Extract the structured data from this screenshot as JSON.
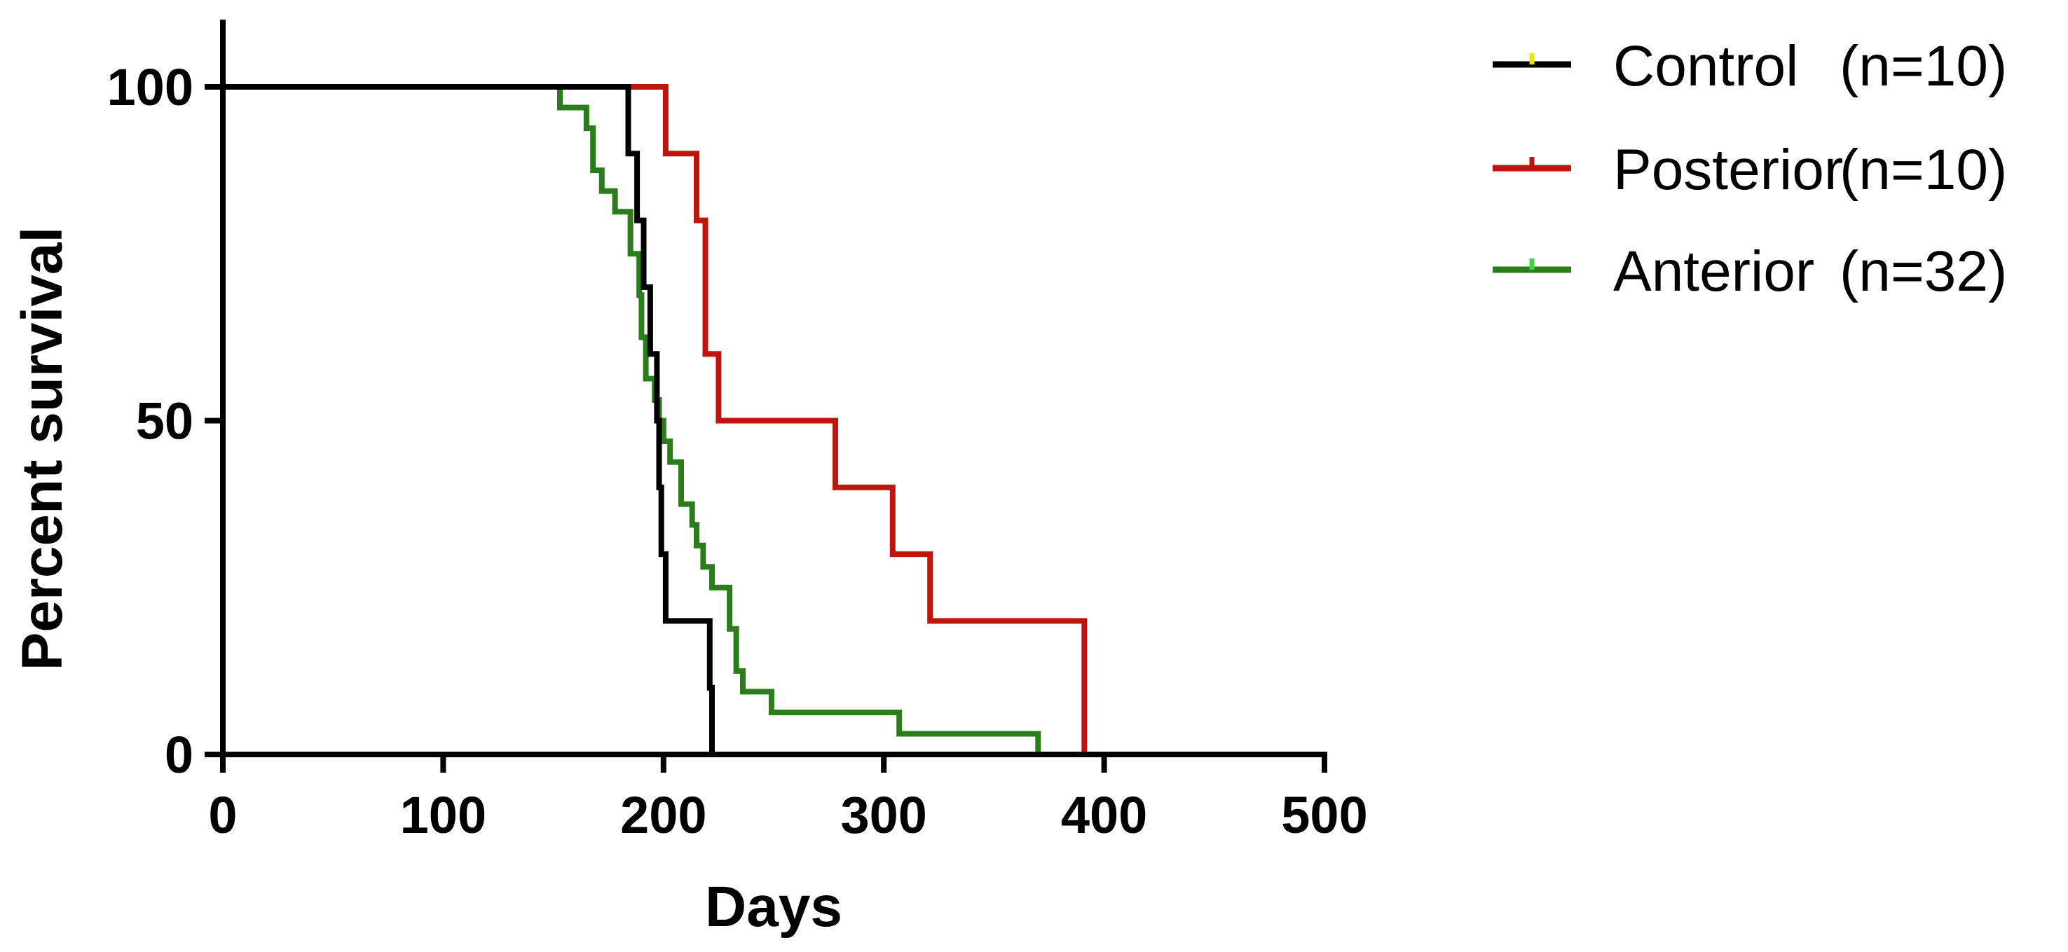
{
  "chart_data": {
    "type": "line",
    "step": true,
    "title": "",
    "xlabel": "Days",
    "ylabel": "Percent survival",
    "xlim": [
      0,
      500
    ],
    "ylim": [
      0,
      100
    ],
    "x_ticks": [
      0,
      100,
      200,
      300,
      400,
      500
    ],
    "y_ticks": [
      0,
      50,
      100
    ],
    "x_tick_labels": [
      "0",
      "100",
      "200",
      "300",
      "400",
      "500"
    ],
    "y_tick_labels": [
      "0",
      "50",
      "100"
    ],
    "grid": false,
    "legend_position": "top-right",
    "series": [
      {
        "name": "Control",
        "legend_count": "(n=10)",
        "color": "#000000",
        "tick_color": "#e6e600",
        "points": [
          [
            0,
            100
          ],
          [
            184,
            100
          ],
          [
            184,
            90
          ],
          [
            188,
            90
          ],
          [
            188,
            80
          ],
          [
            191,
            80
          ],
          [
            191,
            70
          ],
          [
            194,
            70
          ],
          [
            194,
            60
          ],
          [
            197,
            60
          ],
          [
            197,
            50
          ],
          [
            198,
            50
          ],
          [
            198,
            40
          ],
          [
            199,
            40
          ],
          [
            199,
            30
          ],
          [
            201,
            30
          ],
          [
            201,
            20
          ],
          [
            221,
            20
          ],
          [
            221,
            10
          ],
          [
            222,
            10
          ],
          [
            222,
            0
          ]
        ]
      },
      {
        "name": "Posterior",
        "legend_count": "(n=10)",
        "color": "#c0140f",
        "tick_color": "#c0140f",
        "points": [
          [
            184,
            100
          ],
          [
            201,
            100
          ],
          [
            201,
            90
          ],
          [
            215,
            90
          ],
          [
            215,
            80
          ],
          [
            219,
            80
          ],
          [
            219,
            60
          ],
          [
            225,
            60
          ],
          [
            225,
            50
          ],
          [
            278,
            50
          ],
          [
            278,
            40
          ],
          [
            304,
            40
          ],
          [
            304,
            30
          ],
          [
            321,
            30
          ],
          [
            321,
            20
          ],
          [
            391,
            20
          ],
          [
            391,
            0
          ]
        ]
      },
      {
        "name": "Anterior",
        "legend_count": "(n=32)",
        "color": "#2a7d1a",
        "tick_color": "#3fd43a",
        "points": [
          [
            0,
            100
          ],
          [
            153,
            100
          ],
          [
            153,
            96.9
          ],
          [
            165,
            96.9
          ],
          [
            165,
            93.8
          ],
          [
            168,
            93.8
          ],
          [
            168,
            87.5
          ],
          [
            172,
            87.5
          ],
          [
            172,
            84.4
          ],
          [
            178,
            84.4
          ],
          [
            178,
            81.3
          ],
          [
            185,
            81.3
          ],
          [
            185,
            75
          ],
          [
            189,
            75
          ],
          [
            189,
            68.8
          ],
          [
            190,
            68.8
          ],
          [
            190,
            62.5
          ],
          [
            192,
            62.5
          ],
          [
            192,
            56.3
          ],
          [
            196,
            56.3
          ],
          [
            196,
            53.1
          ],
          [
            198,
            53.1
          ],
          [
            198,
            50
          ],
          [
            200,
            50
          ],
          [
            200,
            46.9
          ],
          [
            203,
            46.9
          ],
          [
            203,
            43.8
          ],
          [
            208,
            43.8
          ],
          [
            208,
            37.5
          ],
          [
            213,
            37.5
          ],
          [
            213,
            34.4
          ],
          [
            215,
            34.4
          ],
          [
            215,
            31.3
          ],
          [
            218,
            31.3
          ],
          [
            218,
            28.1
          ],
          [
            222,
            28.1
          ],
          [
            222,
            25
          ],
          [
            230,
            25
          ],
          [
            230,
            18.8
          ],
          [
            233,
            18.8
          ],
          [
            233,
            12.5
          ],
          [
            236,
            12.5
          ],
          [
            236,
            9.4
          ],
          [
            249,
            9.4
          ],
          [
            249,
            6.3
          ],
          [
            307,
            6.3
          ],
          [
            307,
            3.1
          ],
          [
            370,
            3.1
          ],
          [
            370,
            0
          ]
        ]
      }
    ]
  }
}
